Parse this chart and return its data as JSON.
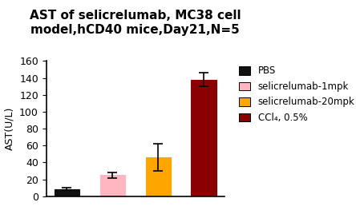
{
  "title": "AST of selicrelumab, MC38 cell\nmodel,hCD40 mice,Day21,N=5",
  "ylabel": "AST(U/L)",
  "categories": [
    "PBS",
    "selicrelumab-1mpk",
    "selicrelumab-20mpk",
    "CCl₄, 0.5%"
  ],
  "values": [
    8.5,
    25.0,
    46.0,
    138.0
  ],
  "errors": [
    1.2,
    3.5,
    16.0,
    8.0
  ],
  "bar_colors": [
    "#111111",
    "#FFB6C1",
    "#FFA500",
    "#8B0000"
  ],
  "legend_colors": [
    "#111111",
    "#FFB6C1",
    "#FFA500",
    "#8B0000"
  ],
  "legend_labels": [
    "PBS",
    "selicrelumab-1mpk",
    "selicrelumab-20mpk",
    "CCl₄, 0.5%"
  ],
  "ylim": [
    0,
    160
  ],
  "yticks": [
    0,
    20,
    40,
    60,
    80,
    100,
    120,
    140,
    160
  ],
  "background_color": "#ffffff",
  "title_fontsize": 11,
  "axis_fontsize": 9,
  "legend_fontsize": 8.5
}
